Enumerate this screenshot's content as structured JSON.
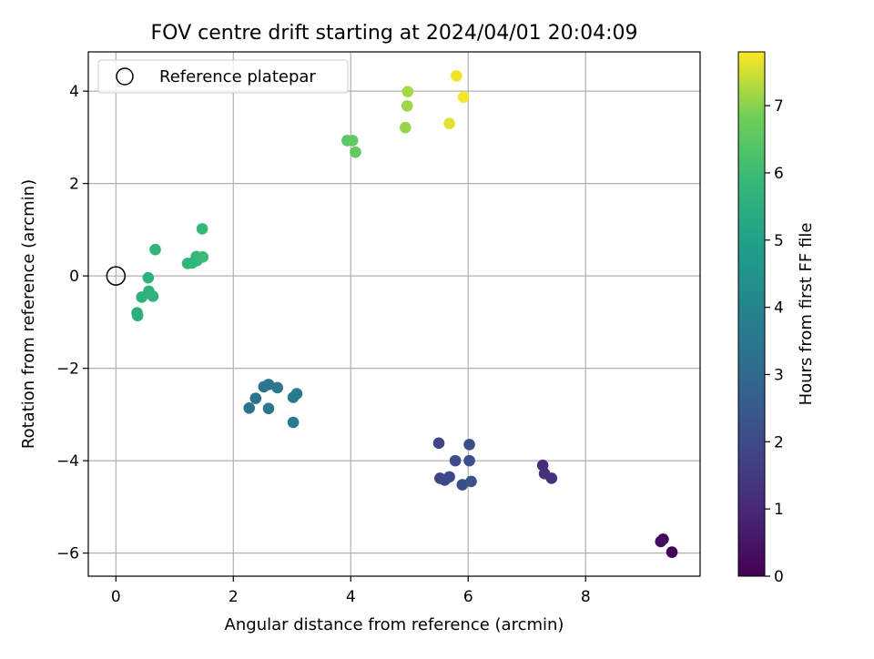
{
  "chart_data": {
    "type": "scatter",
    "title": "FOV centre drift starting at 2024/04/01 20:04:09",
    "xlabel": "Angular distance from reference (arcmin)",
    "ylabel": "Rotation from reference (arcmin)",
    "xlim": [
      -0.47,
      9.95
    ],
    "ylim": [
      -6.5,
      4.85
    ],
    "grid": true,
    "legend_position": "top-left",
    "x_ticks": [
      0,
      2,
      4,
      6,
      8
    ],
    "x_tick_labels": [
      "0",
      "2",
      "4",
      "6",
      "8"
    ],
    "y_ticks": [
      4,
      2,
      0,
      -2,
      -4,
      -6
    ],
    "y_tick_labels": [
      "4",
      "2",
      "0",
      "−2",
      "−4",
      "−6"
    ],
    "reference": {
      "label": "Reference platepar",
      "x": 0,
      "y": 0,
      "marker": "open-circle"
    },
    "colorbar": {
      "label": "Hours from first FF file",
      "colormap": "viridis",
      "min": 0,
      "max": 7.8,
      "ticks": [
        0,
        1,
        2,
        3,
        4,
        5,
        6,
        7
      ],
      "tick_labels": [
        "0",
        "1",
        "2",
        "3",
        "4",
        "5",
        "6",
        "7"
      ]
    },
    "points": [
      {
        "x": 9.47,
        "y": -5.98,
        "hours": 0.0
      },
      {
        "x": 9.32,
        "y": -5.7,
        "hours": 0.15
      },
      {
        "x": 9.28,
        "y": -5.75,
        "hours": 0.3
      },
      {
        "x": 7.27,
        "y": -4.1,
        "hours": 1.1
      },
      {
        "x": 7.3,
        "y": -4.28,
        "hours": 1.2
      },
      {
        "x": 7.42,
        "y": -4.38,
        "hours": 1.3
      },
      {
        "x": 5.5,
        "y": -3.62,
        "hours": 1.85
      },
      {
        "x": 5.52,
        "y": -4.38,
        "hours": 1.9
      },
      {
        "x": 5.6,
        "y": -4.42,
        "hours": 1.95
      },
      {
        "x": 5.68,
        "y": -4.35,
        "hours": 2.0
      },
      {
        "x": 5.78,
        "y": -4.0,
        "hours": 2.05
      },
      {
        "x": 5.9,
        "y": -4.52,
        "hours": 2.1
      },
      {
        "x": 6.02,
        "y": -3.65,
        "hours": 2.15
      },
      {
        "x": 6.02,
        "y": -4.0,
        "hours": 2.2
      },
      {
        "x": 6.05,
        "y": -4.45,
        "hours": 2.25
      },
      {
        "x": 2.27,
        "y": -2.86,
        "hours": 3.3
      },
      {
        "x": 2.38,
        "y": -2.65,
        "hours": 3.35
      },
      {
        "x": 2.52,
        "y": -2.4,
        "hours": 3.4
      },
      {
        "x": 2.6,
        "y": -2.35,
        "hours": 3.45
      },
      {
        "x": 2.6,
        "y": -2.87,
        "hours": 3.5
      },
      {
        "x": 2.75,
        "y": -2.42,
        "hours": 3.5
      },
      {
        "x": 3.02,
        "y": -2.63,
        "hours": 3.55
      },
      {
        "x": 3.08,
        "y": -2.55,
        "hours": 3.6
      },
      {
        "x": 3.02,
        "y": -3.17,
        "hours": 3.65
      },
      {
        "x": 0.36,
        "y": -0.8,
        "hours": 5.5
      },
      {
        "x": 0.37,
        "y": -0.86,
        "hours": 5.55
      },
      {
        "x": 0.44,
        "y": -0.46,
        "hours": 5.6
      },
      {
        "x": 0.55,
        "y": -0.04,
        "hours": 5.6
      },
      {
        "x": 0.56,
        "y": -0.33,
        "hours": 5.65
      },
      {
        "x": 0.63,
        "y": -0.44,
        "hours": 5.65
      },
      {
        "x": 0.67,
        "y": 0.57,
        "hours": 5.7
      },
      {
        "x": 1.22,
        "y": 0.27,
        "hours": 5.75
      },
      {
        "x": 1.3,
        "y": 0.28,
        "hours": 5.8
      },
      {
        "x": 1.37,
        "y": 0.42,
        "hours": 5.85
      },
      {
        "x": 1.38,
        "y": 0.33,
        "hours": 5.85
      },
      {
        "x": 1.47,
        "y": 1.02,
        "hours": 5.9
      },
      {
        "x": 1.48,
        "y": 0.41,
        "hours": 5.95
      },
      {
        "x": 3.94,
        "y": 2.93,
        "hours": 6.5
      },
      {
        "x": 4.03,
        "y": 2.93,
        "hours": 6.55
      },
      {
        "x": 4.08,
        "y": 2.68,
        "hours": 6.6
      },
      {
        "x": 4.93,
        "y": 3.21,
        "hours": 7.1
      },
      {
        "x": 4.96,
        "y": 3.68,
        "hours": 7.15
      },
      {
        "x": 4.97,
        "y": 3.99,
        "hours": 7.2
      },
      {
        "x": 5.68,
        "y": 3.3,
        "hours": 7.6
      },
      {
        "x": 5.8,
        "y": 4.33,
        "hours": 7.7
      },
      {
        "x": 5.92,
        "y": 3.87,
        "hours": 7.75
      }
    ]
  }
}
